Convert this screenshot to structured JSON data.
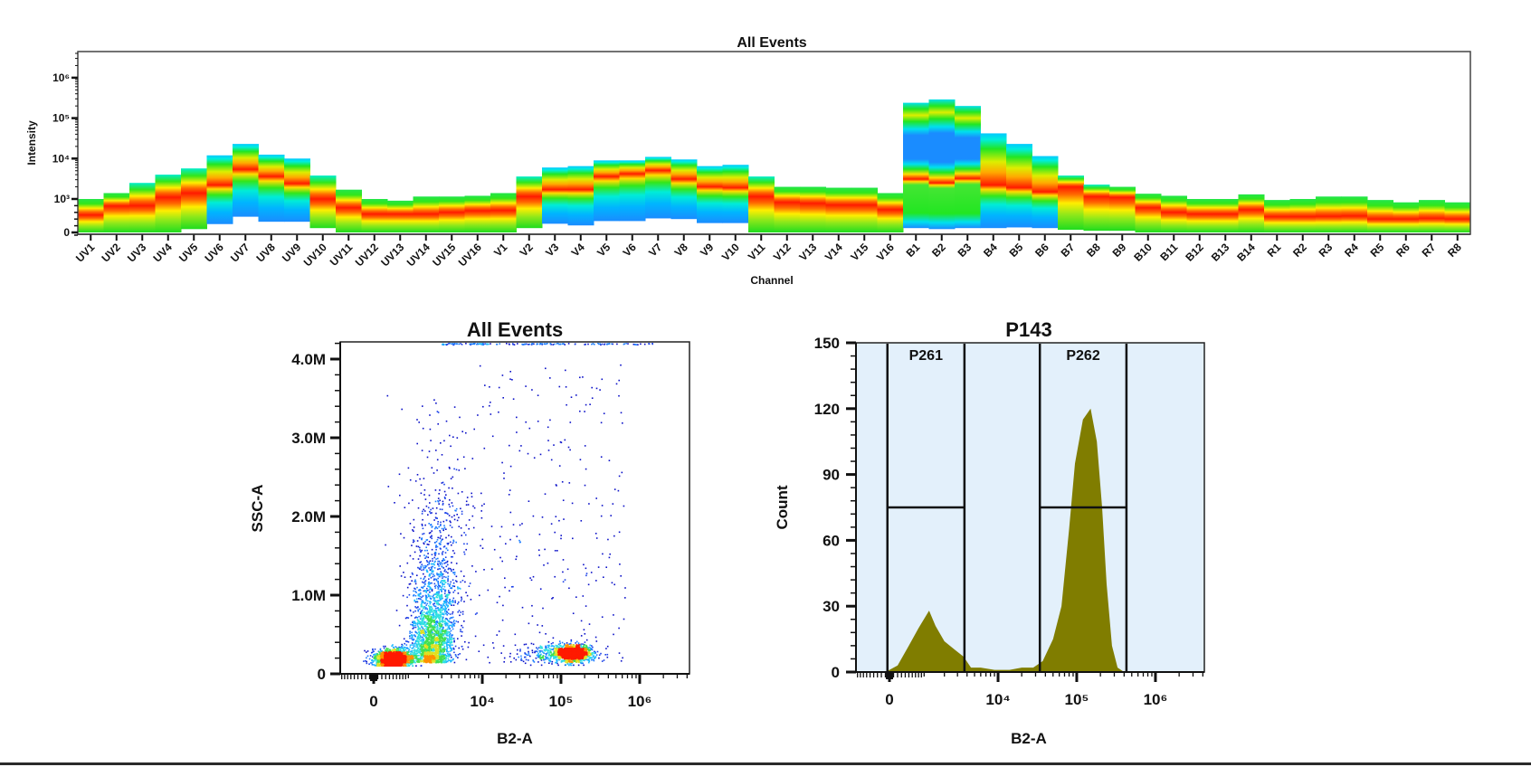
{
  "chart_data": [
    {
      "type": "heatmap",
      "title": "All Events",
      "xlabel": "Channel",
      "ylabel": "Intensity",
      "y_scale": "biexponential",
      "yticks": [
        {
          "value": 0,
          "label": "0"
        },
        {
          "value": 1000,
          "label": "10³"
        },
        {
          "value": 10000,
          "label": "10⁴"
        },
        {
          "value": 100000,
          "label": "10⁵"
        },
        {
          "value": 1000000,
          "label": "10⁶"
        }
      ],
      "colormap": [
        "#1a8cff",
        "#00e0ee",
        "#22e622",
        "#ffee00",
        "#ff1a00"
      ],
      "channels": [
        {
          "name": "UV1",
          "min": 0,
          "peak": 520,
          "max": 1000,
          "profile": "warm"
        },
        {
          "name": "UV2",
          "min": 0,
          "peak": 790,
          "max": 1400,
          "profile": "warm"
        },
        {
          "name": "UV3",
          "min": 0,
          "peak": 800,
          "max": 2500,
          "profile": "warm"
        },
        {
          "name": "UV4",
          "min": 0,
          "peak": 1100,
          "max": 4000,
          "profile": "warm"
        },
        {
          "name": "UV5",
          "min": 100,
          "peak": 1400,
          "max": 5700,
          "profile": "warm"
        },
        {
          "name": "UV6",
          "min": 250,
          "peak": 2200,
          "max": 12000,
          "profile": "cool"
        },
        {
          "name": "UV7",
          "min": 470,
          "peak": 5400,
          "max": 23000,
          "profile": "cool"
        },
        {
          "name": "UV8",
          "min": 320,
          "peak": 3600,
          "max": 12500,
          "profile": "cool"
        },
        {
          "name": "UV9",
          "min": 320,
          "peak": 2400,
          "max": 10000,
          "profile": "cool"
        },
        {
          "name": "UV10",
          "min": 130,
          "peak": 1000,
          "max": 3800,
          "profile": "warm"
        },
        {
          "name": "UV11",
          "min": 0,
          "peak": 740,
          "max": 1700,
          "profile": "warm"
        },
        {
          "name": "UV12",
          "min": 0,
          "peak": 550,
          "max": 1000,
          "profile": "warm"
        },
        {
          "name": "UV13",
          "min": 0,
          "peak": 550,
          "max": 950,
          "profile": "warm"
        },
        {
          "name": "UV14",
          "min": 0,
          "peak": 550,
          "max": 1150,
          "profile": "warm"
        },
        {
          "name": "UV15",
          "min": 0,
          "peak": 600,
          "max": 1150,
          "profile": "warm"
        },
        {
          "name": "UV16",
          "min": 0,
          "peak": 650,
          "max": 1200,
          "profile": "warm"
        },
        {
          "name": "V1",
          "min": 0,
          "peak": 660,
          "max": 1400,
          "profile": "warm"
        },
        {
          "name": "V2",
          "min": 130,
          "peak": 1150,
          "max": 3600,
          "profile": "warm"
        },
        {
          "name": "V3",
          "min": 260,
          "peak": 1700,
          "max": 6000,
          "profile": "cool"
        },
        {
          "name": "V4",
          "min": 210,
          "peak": 1700,
          "max": 6500,
          "profile": "cool"
        },
        {
          "name": "V5",
          "min": 340,
          "peak": 3600,
          "max": 9000,
          "profile": "cool"
        },
        {
          "name": "V6",
          "min": 340,
          "peak": 4200,
          "max": 9000,
          "profile": "cool"
        },
        {
          "name": "V7",
          "min": 420,
          "peak": 5100,
          "max": 11000,
          "profile": "cool"
        },
        {
          "name": "V8",
          "min": 400,
          "peak": 3100,
          "max": 9500,
          "profile": "cool"
        },
        {
          "name": "V9",
          "min": 280,
          "peak": 2000,
          "max": 6500,
          "profile": "cool"
        },
        {
          "name": "V10",
          "min": 280,
          "peak": 1900,
          "max": 7000,
          "profile": "cool"
        },
        {
          "name": "V11",
          "min": 0,
          "peak": 1150,
          "max": 3600,
          "profile": "warm"
        },
        {
          "name": "V12",
          "min": 0,
          "peak": 900,
          "max": 2000,
          "profile": "warm"
        },
        {
          "name": "V13",
          "min": 0,
          "peak": 870,
          "max": 2000,
          "profile": "warm"
        },
        {
          "name": "V14",
          "min": 0,
          "peak": 820,
          "max": 1900,
          "profile": "warm"
        },
        {
          "name": "V15",
          "min": 0,
          "peak": 820,
          "max": 1900,
          "profile": "warm"
        },
        {
          "name": "V16",
          "min": 0,
          "peak": 680,
          "max": 1400,
          "profile": "warm"
        },
        {
          "name": "B1",
          "min": 130,
          "peak": 3100,
          "max": 240000,
          "profile": "blue-band"
        },
        {
          "name": "B2",
          "min": 100,
          "peak": 2500,
          "max": 290000,
          "profile": "blue-band"
        },
        {
          "name": "B3",
          "min": 130,
          "peak": 3200,
          "max": 200000,
          "profile": "blue-band"
        },
        {
          "name": "B4",
          "min": 130,
          "peak": 2200,
          "max": 42000,
          "profile": "cool"
        },
        {
          "name": "B5",
          "min": 150,
          "peak": 1900,
          "max": 23000,
          "profile": "cool"
        },
        {
          "name": "B6",
          "min": 130,
          "peak": 1500,
          "max": 11500,
          "profile": "cool"
        },
        {
          "name": "B7",
          "min": 80,
          "peak": 2000,
          "max": 3800,
          "profile": "warm"
        },
        {
          "name": "B8",
          "min": 50,
          "peak": 1150,
          "max": 2270,
          "profile": "warm"
        },
        {
          "name": "B9",
          "min": 50,
          "peak": 1100,
          "max": 2000,
          "profile": "warm"
        },
        {
          "name": "B10",
          "min": 0,
          "peak": 740,
          "max": 1350,
          "profile": "warm"
        },
        {
          "name": "B11",
          "min": 0,
          "peak": 600,
          "max": 1200,
          "profile": "warm"
        },
        {
          "name": "B12",
          "min": 0,
          "peak": 550,
          "max": 1000,
          "profile": "warm"
        },
        {
          "name": "B13",
          "min": 0,
          "peak": 550,
          "max": 1000,
          "profile": "warm"
        },
        {
          "name": "B14",
          "min": 0,
          "peak": 680,
          "max": 1300,
          "profile": "warm"
        },
        {
          "name": "R1",
          "min": 0,
          "peak": 470,
          "max": 970,
          "profile": "warm"
        },
        {
          "name": "R2",
          "min": 0,
          "peak": 470,
          "max": 1000,
          "profile": "warm"
        },
        {
          "name": "R3",
          "min": 0,
          "peak": 480,
          "max": 1150,
          "profile": "warm"
        },
        {
          "name": "R4",
          "min": 0,
          "peak": 490,
          "max": 1150,
          "profile": "warm"
        },
        {
          "name": "R5",
          "min": 0,
          "peak": 400,
          "max": 970,
          "profile": "warm"
        },
        {
          "name": "R6",
          "min": 0,
          "peak": 400,
          "max": 900,
          "profile": "warm"
        },
        {
          "name": "R7",
          "min": 0,
          "peak": 420,
          "max": 970,
          "profile": "warm"
        },
        {
          "name": "R8",
          "min": 0,
          "peak": 400,
          "max": 900,
          "profile": "warm"
        }
      ]
    },
    {
      "type": "scatter",
      "title": "All Events",
      "xlabel": "B2-A",
      "ylabel": "SSC-A",
      "x_scale": "biexponential",
      "ylim": [
        0,
        4200000
      ],
      "xticks": [
        {
          "value": 0,
          "label": "0"
        },
        {
          "value": 10000,
          "label": "10⁴"
        },
        {
          "value": 100000,
          "label": "10⁵"
        },
        {
          "value": 1000000,
          "label": "10⁶"
        }
      ],
      "yticks": [
        {
          "value": 0,
          "label": "0"
        },
        {
          "value": 1000000,
          "label": "1.0M"
        },
        {
          "value": 2000000,
          "label": "2.0M"
        },
        {
          "value": 3000000,
          "label": "3.0M"
        },
        {
          "value": 4000000,
          "label": "4.0M"
        }
      ],
      "coloring": "density",
      "populations": [
        {
          "x_center": 500,
          "x_spread_decades": 0.12,
          "y_center": 200000,
          "y_spread": 60000,
          "n": 1800
        },
        {
          "x_center": 2200,
          "x_spread_decades": 0.13,
          "y_from": 150000,
          "y_to": 3800000,
          "n": 2500
        },
        {
          "x_center": 140000,
          "x_spread_decades": 0.1,
          "y_center": 270000,
          "y_spread": 50000,
          "n": 2000
        },
        {
          "x_from": 8000,
          "x_to": 650000,
          "y_from": 150000,
          "y_to": 4000000,
          "n": 260
        },
        {
          "x_from": 3000,
          "x_to": 1500000,
          "y_center": 4200000,
          "n": 150
        }
      ]
    },
    {
      "type": "area",
      "title": "P143",
      "xlabel": "B2-A",
      "ylabel": "Count",
      "x_scale": "biexponential",
      "ylim": [
        0,
        150
      ],
      "fill_color": "#807d00",
      "background_color": "#e3f0fb",
      "xticks": [
        {
          "value": 0,
          "label": "0"
        },
        {
          "value": 10000,
          "label": "10⁴"
        },
        {
          "value": 100000,
          "label": "10⁵"
        },
        {
          "value": 1000000,
          "label": "10⁶"
        }
      ],
      "yticks": [
        {
          "value": 0,
          "label": "0"
        },
        {
          "value": 30,
          "label": "30"
        },
        {
          "value": 60,
          "label": "60"
        },
        {
          "value": 90,
          "label": "90"
        },
        {
          "value": 120,
          "label": "120"
        },
        {
          "value": 150,
          "label": "150"
        }
      ],
      "points": [
        [
          -100,
          0
        ],
        [
          0,
          1
        ],
        [
          200,
          3
        ],
        [
          500,
          12
        ],
        [
          800,
          20
        ],
        [
          1200,
          28
        ],
        [
          1500,
          21
        ],
        [
          2000,
          14
        ],
        [
          2800,
          10
        ],
        [
          3600,
          7
        ],
        [
          4500,
          2
        ],
        [
          6000,
          2
        ],
        [
          9000,
          1
        ],
        [
          14000,
          1
        ],
        [
          20000,
          2
        ],
        [
          28000,
          2
        ],
        [
          37000,
          5
        ],
        [
          50000,
          15
        ],
        [
          64000,
          30
        ],
        [
          80000,
          65
        ],
        [
          95000,
          95
        ],
        [
          120000,
          115
        ],
        [
          150000,
          120
        ],
        [
          180000,
          105
        ],
        [
          210000,
          75
        ],
        [
          240000,
          40
        ],
        [
          280000,
          12
        ],
        [
          330000,
          2
        ],
        [
          400000,
          0
        ]
      ],
      "gates": [
        {
          "name": "P261",
          "x_from": -50,
          "x_to": 3700,
          "level": 75
        },
        {
          "name": "P262",
          "x_from": 34000,
          "x_to": 428000,
          "level": 75
        }
      ]
    }
  ]
}
